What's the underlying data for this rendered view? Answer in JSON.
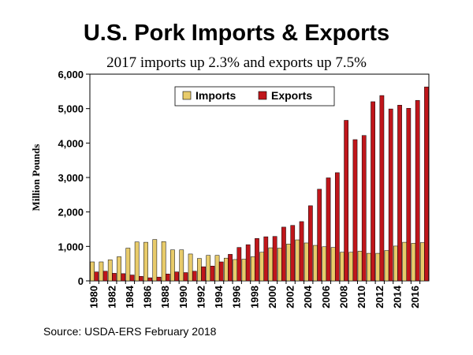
{
  "title": "U.S. Pork Imports & Exports",
  "subtitle": "2017 imports up 2.3% and exports up 7.5%",
  "source": "Source: USDA-ERS  February 2018",
  "colors": {
    "imports": "#E8CB6A",
    "exports": "#C0161B"
  },
  "chart_data": {
    "type": "bar",
    "ylabel": "Million Pounds",
    "ylim": [
      0,
      6000
    ],
    "yticks": [
      "0",
      "1,000",
      "2,000",
      "3,000",
      "4,000",
      "5,000",
      "6,000"
    ],
    "xtick_labels": [
      "1980",
      "1982",
      "1984",
      "1986",
      "1988",
      "1990",
      "1992",
      "1994",
      "1996",
      "1998",
      "2000",
      "2002",
      "2004",
      "2006",
      "2008",
      "2010",
      "2012",
      "2014",
      "2016"
    ],
    "legend_position": "top-center",
    "categories": [
      "1980",
      "1981",
      "1982",
      "1983",
      "1984",
      "1985",
      "1986",
      "1987",
      "1988",
      "1989",
      "1990",
      "1991",
      "1992",
      "1993",
      "1994",
      "1995",
      "1996",
      "1997",
      "1998",
      "1999",
      "2000",
      "2001",
      "2002",
      "2003",
      "2004",
      "2005",
      "2006",
      "2007",
      "2008",
      "2009",
      "2010",
      "2011",
      "2012",
      "2013",
      "2014",
      "2015",
      "2016",
      "2017"
    ],
    "series": [
      {
        "name": "Imports",
        "values": [
          550,
          550,
          610,
          700,
          950,
          1130,
          1120,
          1200,
          1140,
          900,
          900,
          780,
          650,
          740,
          740,
          660,
          620,
          630,
          700,
          830,
          960,
          950,
          1070,
          1190,
          1100,
          1030,
          990,
          970,
          830,
          830,
          860,
          800,
          800,
          880,
          1010,
          1120,
          1090,
          1110
        ]
      },
      {
        "name": "Exports",
        "values": [
          260,
          280,
          220,
          210,
          170,
          130,
          90,
          110,
          200,
          260,
          240,
          280,
          410,
          430,
          550,
          770,
          970,
          1050,
          1230,
          1280,
          1290,
          1560,
          1610,
          1720,
          2180,
          2660,
          2990,
          3140,
          4660,
          4100,
          4220,
          5200,
          5380,
          4990,
          5100,
          5010,
          5240,
          5630
        ]
      }
    ]
  }
}
